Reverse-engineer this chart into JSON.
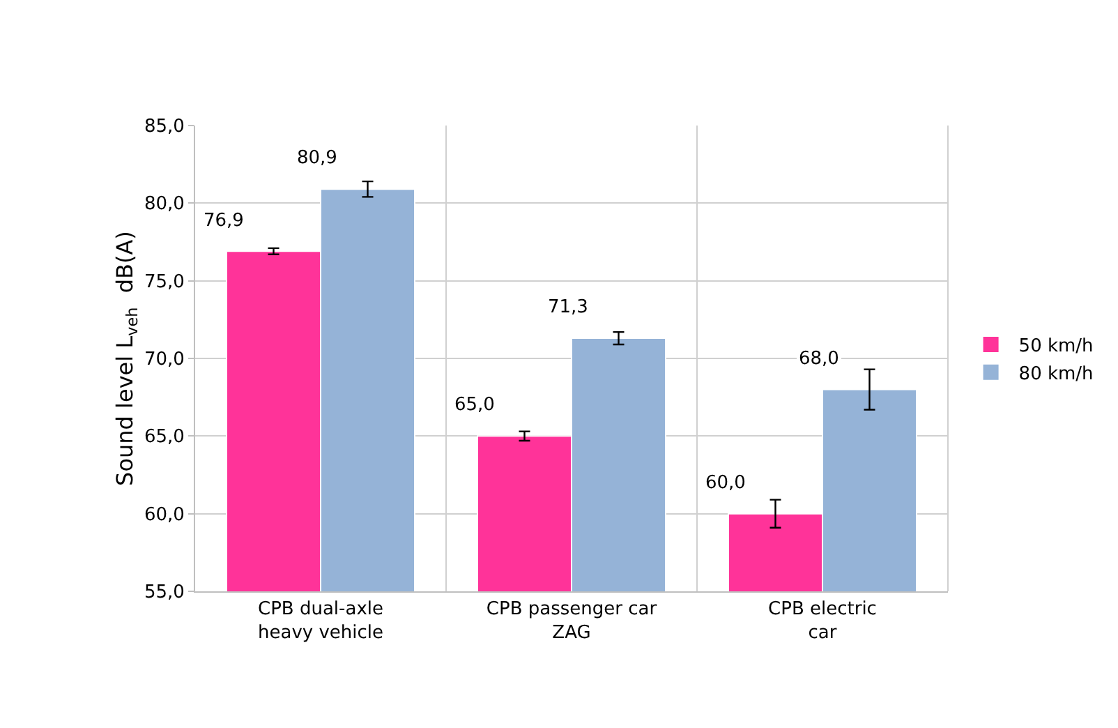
{
  "chart_data": {
    "type": "bar",
    "ylabel": "Sound level L$_{veh}$  dB(A)",
    "categories": [
      "CPB dual-axle heavy vehicle",
      "CPB passenger car ZAG",
      "CPB electric car"
    ],
    "series": [
      {
        "name": "50 km/h",
        "color": "#ff3399",
        "values": [
          76.9,
          65.0,
          60.0
        ],
        "value_labels": [
          "76,9",
          "65,0",
          "60,0"
        ],
        "errors": [
          0.2,
          0.3,
          0.9
        ]
      },
      {
        "name": "80 km/h",
        "color": "#95b3d7",
        "values": [
          80.9,
          71.3,
          68.0
        ],
        "value_labels": [
          "80,9",
          "71,3",
          "68,0"
        ],
        "errors": [
          0.5,
          0.4,
          1.3
        ]
      }
    ],
    "ylim": [
      55,
      85
    ],
    "yticks": [
      {
        "value": 55,
        "label": "55,0"
      },
      {
        "value": 60,
        "label": "60,0"
      },
      {
        "value": 65,
        "label": "65,0"
      },
      {
        "value": 70,
        "label": "70,0"
      },
      {
        "value": 75,
        "label": "75,0"
      },
      {
        "value": 80,
        "label": "80,0"
      },
      {
        "value": 85,
        "label": "85,0"
      }
    ],
    "grid": true,
    "legend": "right"
  }
}
